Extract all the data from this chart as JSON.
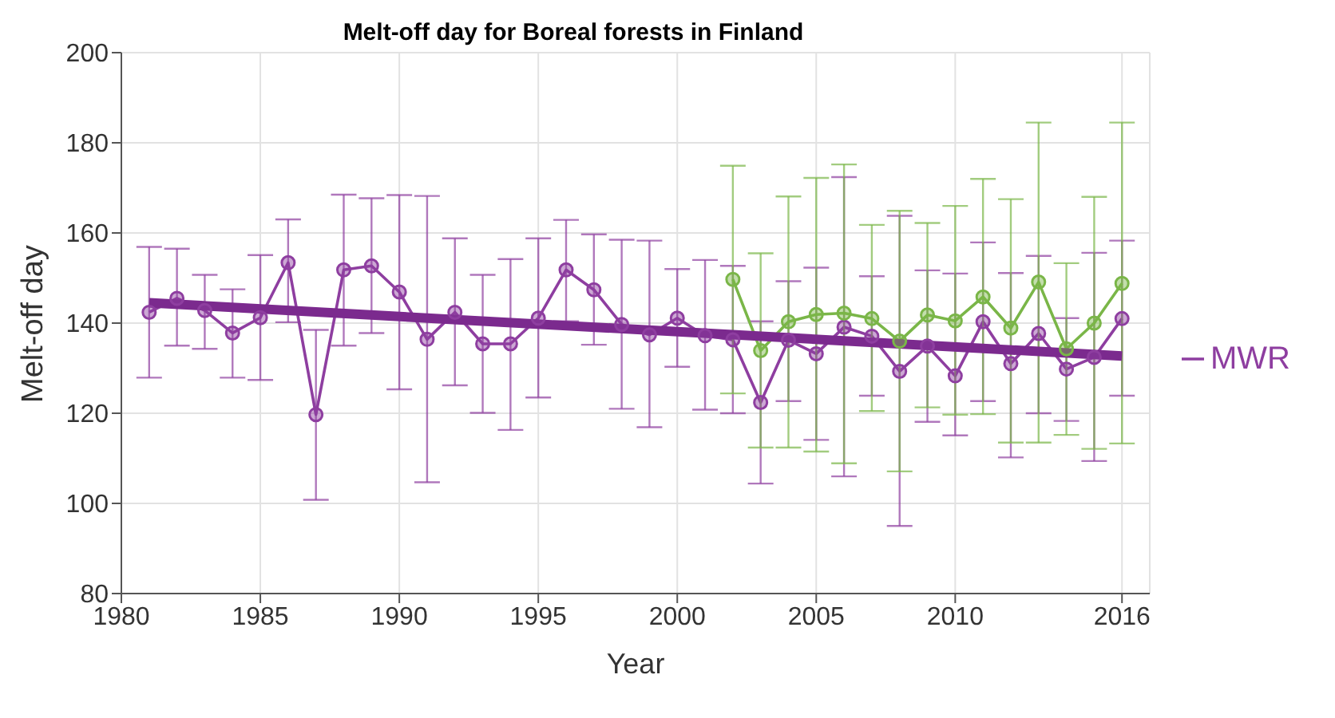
{
  "chart_data": {
    "type": "line",
    "title": "Melt-off day for Boreal forests in Finland",
    "xlabel": "Year",
    "ylabel": "Melt-off day",
    "xlim": [
      1980,
      2017
    ],
    "xticks": [
      1980,
      1985,
      1990,
      1995,
      2000,
      2005,
      2010,
      2016
    ],
    "ylim": [
      80,
      200
    ],
    "yticks": [
      80,
      100,
      120,
      140,
      160,
      180,
      200
    ],
    "grid": true,
    "legend": "right",
    "marker": "circle",
    "line_style": "solid",
    "series": [
      {
        "name": "MWR",
        "color": "#8e3ea0",
        "x": [
          1981,
          1982,
          1983,
          1984,
          1985,
          1986,
          1987,
          1988,
          1989,
          1990,
          1991,
          1992,
          1993,
          1994,
          1995,
          1996,
          1997,
          1998,
          1999,
          2000,
          2001,
          2002,
          2003,
          2004,
          2005,
          2006,
          2007,
          2008,
          2009,
          2010,
          2011,
          2012,
          2013,
          2014,
          2015,
          2016
        ],
        "values": [
          142.4,
          145.5,
          142.8,
          137.8,
          141.2,
          153.4,
          119.7,
          151.8,
          152.7,
          146.9,
          136.4,
          142.4,
          135.4,
          135.4,
          141.1,
          151.8,
          147.4,
          139.7,
          137.4,
          141.1,
          137.2,
          136.3,
          122.4,
          136.2,
          133.2,
          139.1,
          137.1,
          129.3,
          134.9,
          128.3,
          140.3,
          131,
          137.7,
          129.8,
          132.4,
          141
        ],
        "errors": [
          [
            127.9,
            156.9
          ],
          [
            135,
            156.5
          ],
          [
            134.3,
            150.7
          ],
          [
            127.9,
            147.5
          ],
          [
            127.4,
            155.1
          ],
          [
            140.2,
            163
          ],
          [
            100.8,
            138.5
          ],
          [
            135,
            168.5
          ],
          [
            137.8,
            167.7
          ],
          [
            125.3,
            168.4
          ],
          [
            104.7,
            168.2
          ],
          [
            126.2,
            158.8
          ],
          [
            120.1,
            150.7
          ],
          [
            116.3,
            154.2
          ],
          [
            123.5,
            158.8
          ],
          [
            140.4,
            162.9
          ],
          [
            135.2,
            159.7
          ],
          [
            121,
            158.5
          ],
          [
            116.9,
            158.3
          ],
          [
            130.3,
            152
          ],
          [
            120.8,
            154
          ],
          [
            120,
            152.7
          ],
          [
            104.4,
            140.4
          ],
          [
            122.7,
            149.3
          ],
          [
            114.1,
            152.3
          ],
          [
            106,
            172.4
          ],
          [
            123.9,
            150.4
          ],
          [
            95,
            163.8
          ],
          [
            118.1,
            151.7
          ],
          [
            115.1,
            151
          ],
          [
            122.7,
            157.9
          ],
          [
            110.2,
            151.1
          ],
          [
            120,
            154.9
          ],
          [
            118.3,
            141.1
          ],
          [
            109.4,
            155.6
          ],
          [
            123.9,
            158.3
          ]
        ]
      },
      {
        "color": "#7ab648",
        "x": [
          2002,
          2003,
          2004,
          2005,
          2006,
          2007,
          2008,
          2009,
          2010,
          2011,
          2012,
          2013,
          2014,
          2015,
          2016
        ],
        "values": [
          149.7,
          133.9,
          140.3,
          141.9,
          142.2,
          141,
          136,
          141.8,
          140.5,
          145.8,
          138.9,
          149.1,
          134.3,
          140,
          148.8
        ],
        "errors": [
          [
            124.4,
            174.9
          ],
          [
            112.4,
            155.5
          ],
          [
            112.4,
            168.1
          ],
          [
            111.5,
            172.2
          ],
          [
            108.9,
            175.2
          ],
          [
            120.5,
            161.8
          ],
          [
            107.1,
            164.9
          ],
          [
            121.3,
            162.2
          ],
          [
            119.7,
            166
          ],
          [
            119.8,
            172
          ],
          [
            113.5,
            167.5
          ],
          [
            113.5,
            184.5
          ],
          [
            115.2,
            153.3
          ],
          [
            112.1,
            168
          ],
          [
            113.3,
            184.5
          ]
        ]
      },
      {
        "type": "line",
        "color": "#7b2a8e",
        "marker": "none",
        "x": [
          1981,
          2016
        ],
        "values": [
          144.5,
          132.7
        ]
      }
    ]
  }
}
